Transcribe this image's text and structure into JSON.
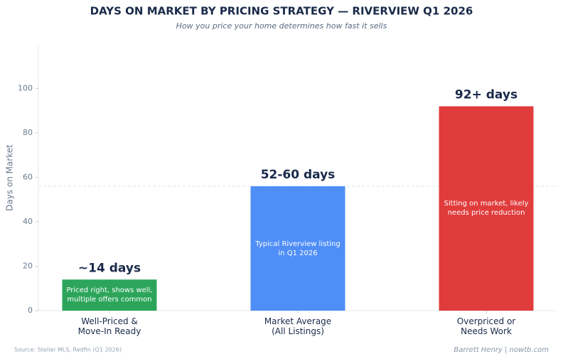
{
  "chart_data": {
    "type": "bar",
    "title": "DAYS ON MARKET BY PRICING STRATEGY — RIVERVIEW Q1 2026",
    "subtitle": "How you price your home determines how fast it sells",
    "y_label": "Days on Market",
    "categories": [
      "Well-Priced &\nMove-In Ready",
      "Market Average\n(All Listings)",
      "Overpriced or\nNeeds Work"
    ],
    "values": [
      14,
      56,
      92
    ],
    "value_labels": [
      "~14 days",
      "52-60 days",
      "92+ days"
    ],
    "colors": [
      "#2ca55a",
      "#4f8ef7",
      "#e03c3c"
    ],
    "annotations": [
      "Priced right, shows well,\nmultiple offers common",
      "Typical Riverview listing\nin Q1 2026",
      "Sitting on market, likely\nneeds price reduction"
    ],
    "reference_line": 56,
    "ylim": [
      0,
      120
    ],
    "yticks": [
      0,
      20,
      40,
      60,
      80,
      100
    ],
    "grid": false,
    "source": "Source: Stellar MLS, Redfin (Q1 2026)",
    "credit": "Barrett Henry | nowtb.com"
  }
}
